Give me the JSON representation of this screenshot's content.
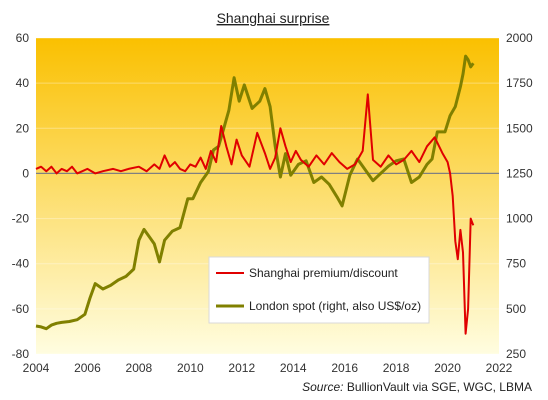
{
  "chart_data": {
    "type": "line",
    "title": "Shanghai surprise",
    "source_label": "Source:",
    "source_text": "BullionVault via SGE, WGC, LBMA",
    "x_ticks": [
      "2004",
      "2006",
      "2008",
      "2010",
      "2012",
      "2014",
      "2016",
      "2018",
      "2020",
      "2022"
    ],
    "xlim": [
      2004,
      2022
    ],
    "left_axis": {
      "ylim": [
        -80,
        60
      ],
      "ticks": [
        "60",
        "40",
        "20",
        "0",
        "-20",
        "-40",
        "-60",
        "-80"
      ]
    },
    "right_axis": {
      "ylim": [
        250,
        2000
      ],
      "ticks": [
        "2000",
        "1750",
        "1500",
        "1250",
        "1000",
        "750",
        "500",
        "250"
      ]
    },
    "legend_position": "lower-right",
    "colors": {
      "premium": "#e00000",
      "spot": "#808000",
      "bg_top": "#fac000",
      "bg_bottom": "#fffde0",
      "zero_line": "#808080"
    },
    "series": [
      {
        "name": "Shanghai premium/discount",
        "axis": "left",
        "x": [
          2004.0,
          2004.2,
          2004.4,
          2004.6,
          2004.8,
          2005.0,
          2005.2,
          2005.4,
          2005.6,
          2005.8,
          2006.0,
          2006.3,
          2006.6,
          2007.0,
          2007.3,
          2007.6,
          2008.0,
          2008.3,
          2008.6,
          2008.8,
          2009.0,
          2009.2,
          2009.4,
          2009.6,
          2009.8,
          2010.0,
          2010.2,
          2010.4,
          2010.6,
          2010.8,
          2011.0,
          2011.2,
          2011.4,
          2011.6,
          2011.8,
          2012.0,
          2012.3,
          2012.6,
          2012.9,
          2013.1,
          2013.3,
          2013.5,
          2013.7,
          2013.9,
          2014.1,
          2014.3,
          2014.6,
          2014.9,
          2015.2,
          2015.5,
          2015.8,
          2016.1,
          2016.4,
          2016.7,
          2016.9,
          2017.1,
          2017.4,
          2017.7,
          2018.0,
          2018.3,
          2018.6,
          2018.9,
          2019.2,
          2019.5,
          2019.8,
          2020.0,
          2020.1,
          2020.2,
          2020.3,
          2020.4,
          2020.5,
          2020.6,
          2020.7,
          2020.8,
          2020.9,
          2021.0
        ],
        "values": [
          2,
          3,
          1,
          3,
          0,
          2,
          1,
          3,
          0,
          1,
          2,
          0,
          1,
          2,
          1,
          2,
          3,
          1,
          4,
          2,
          8,
          3,
          5,
          2,
          1,
          4,
          3,
          7,
          2,
          10,
          5,
          21,
          12,
          4,
          15,
          8,
          3,
          18,
          9,
          2,
          7,
          20,
          12,
          5,
          10,
          6,
          3,
          8,
          4,
          9,
          5,
          2,
          4,
          10,
          35,
          6,
          3,
          8,
          4,
          6,
          10,
          5,
          12,
          16,
          9,
          5,
          0,
          -10,
          -30,
          -38,
          -25,
          -35,
          -71,
          -60,
          -20,
          -23
        ]
      },
      {
        "name": "London spot (right, also US$/oz)",
        "axis": "right",
        "x": [
          2004.0,
          2004.2,
          2004.4,
          2004.6,
          2004.8,
          2005.0,
          2005.3,
          2005.6,
          2005.9,
          2006.1,
          2006.3,
          2006.6,
          2006.9,
          2007.2,
          2007.5,
          2007.8,
          2008.0,
          2008.2,
          2008.4,
          2008.6,
          2008.8,
          2009.0,
          2009.3,
          2009.6,
          2009.9,
          2010.1,
          2010.4,
          2010.7,
          2010.9,
          2011.1,
          2011.3,
          2011.5,
          2011.7,
          2011.9,
          2012.1,
          2012.4,
          2012.7,
          2012.9,
          2013.1,
          2013.3,
          2013.5,
          2013.7,
          2013.9,
          2014.2,
          2014.5,
          2014.8,
          2015.1,
          2015.4,
          2015.7,
          2015.9,
          2016.2,
          2016.5,
          2016.8,
          2017.1,
          2017.4,
          2017.7,
          2018.0,
          2018.3,
          2018.6,
          2018.9,
          2019.2,
          2019.4,
          2019.6,
          2019.9,
          2020.1,
          2020.3,
          2020.5,
          2020.6,
          2020.7,
          2020.8,
          2020.9,
          2021.0
        ],
        "values": [
          405,
          400,
          390,
          410,
          420,
          425,
          430,
          440,
          470,
          560,
          640,
          610,
          630,
          660,
          680,
          720,
          880,
          940,
          900,
          860,
          760,
          880,
          930,
          950,
          1110,
          1110,
          1200,
          1260,
          1380,
          1400,
          1500,
          1600,
          1780,
          1650,
          1740,
          1610,
          1650,
          1720,
          1620,
          1400,
          1230,
          1360,
          1240,
          1300,
          1320,
          1200,
          1230,
          1190,
          1120,
          1070,
          1240,
          1330,
          1270,
          1210,
          1250,
          1290,
          1320,
          1330,
          1200,
          1230,
          1300,
          1330,
          1480,
          1480,
          1570,
          1620,
          1730,
          1800,
          1900,
          1880,
          1840,
          1860
        ]
      }
    ]
  }
}
